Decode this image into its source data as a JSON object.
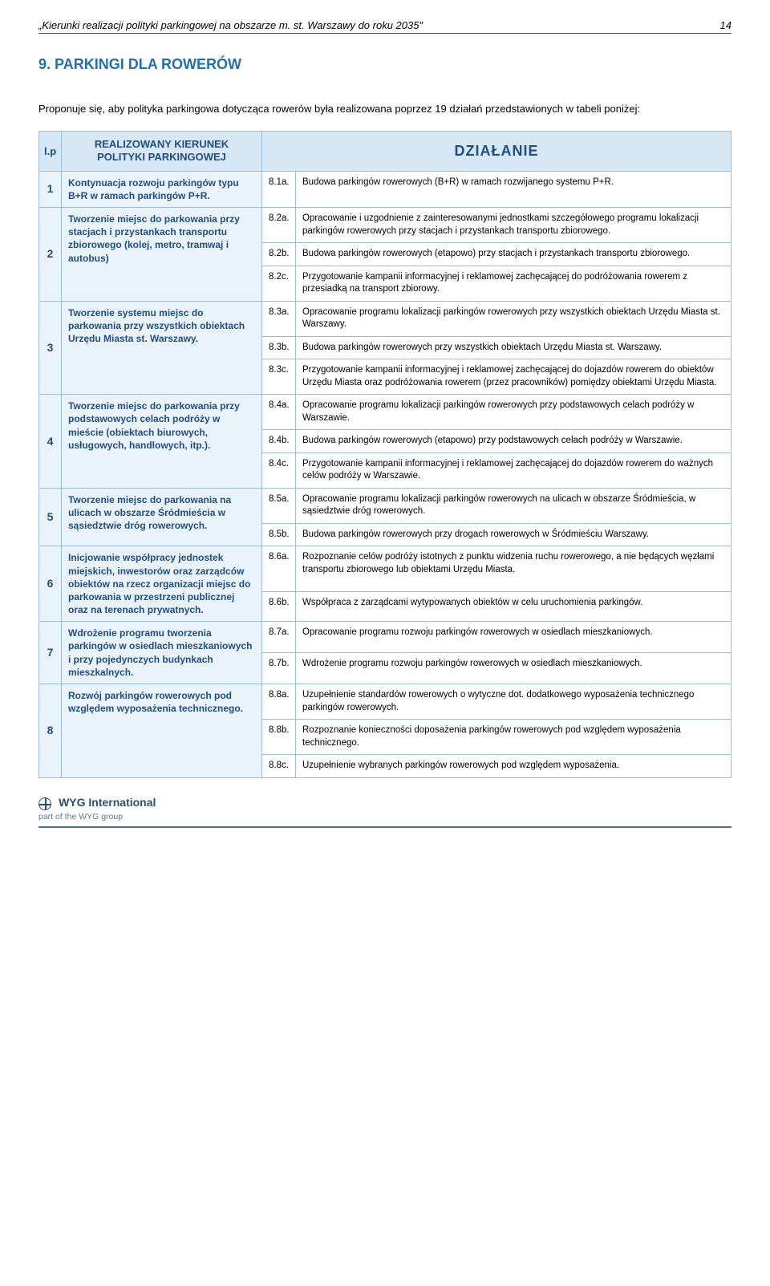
{
  "header": {
    "title_italic": "„Kierunki realizacji polityki parkingowej na obszarze m. st. Warszawy do roku 2035\"",
    "page_number": "14"
  },
  "section": {
    "number": "9.",
    "title": "PARKINGI DLA ROWERÓW"
  },
  "intro": "Proponuje się, aby polityka parkingowa dotycząca rowerów była realizowana poprzez 19 działań przedstawionych w tabeli poniżej:",
  "table": {
    "headers": {
      "lp": "l.p",
      "kierunek_line1": "REALIZOWANY KIERUNEK",
      "kierunek_line2": "POLITYKI PARKINGOWEJ",
      "dzialanie": "DZIAŁANIE"
    },
    "rows": [
      {
        "lp": "1",
        "kierunek": "Kontynuacja rozwoju parkingów typu B+R w ramach parkingów P+R.",
        "actions": [
          {
            "num": "8.1a.",
            "text": "Budowa parkingów rowerowych (B+R) w ramach rozwijanego systemu P+R."
          }
        ]
      },
      {
        "lp": "2",
        "kierunek": "Tworzenie miejsc do parkowania przy stacjach i przystankach transportu zbiorowego (kolej, metro, tramwaj i autobus)",
        "actions": [
          {
            "num": "8.2a.",
            "text": "Opracowanie i uzgodnienie z zainteresowanymi jednostkami szczegółowego programu lokalizacji parkingów rowerowych przy stacjach i przystankach transportu zbiorowego."
          },
          {
            "num": "8.2b.",
            "text": "Budowa parkingów rowerowych (etapowo) przy stacjach i przystankach transportu zbiorowego."
          },
          {
            "num": "8.2c.",
            "text": "Przygotowanie kampanii informacyjnej i reklamowej zachęcającej do podróżowania rowerem z przesiadką na transport zbiorowy."
          }
        ]
      },
      {
        "lp": "3",
        "kierunek": "Tworzenie systemu miejsc do parkowania przy wszystkich obiektach Urzędu Miasta st. Warszawy.",
        "actions": [
          {
            "num": "8.3a.",
            "text": "Opracowanie programu lokalizacji parkingów rowerowych przy wszystkich obiektach Urzędu Miasta st. Warszawy."
          },
          {
            "num": "8.3b.",
            "text": "Budowa parkingów rowerowych przy wszystkich obiektach Urzędu Miasta st. Warszawy."
          },
          {
            "num": "8.3c.",
            "text": "Przygotowanie kampanii informacyjnej i reklamowej zachęcającej do dojazdów rowerem do obiektów Urzędu Miasta oraz podróżowania rowerem (przez pracowników) pomiędzy obiektami Urzędu Miasta."
          }
        ]
      },
      {
        "lp": "4",
        "kierunek": "Tworzenie miejsc do parkowania przy podstawowych celach podróży w mieście (obiektach biurowych, usługowych, handlowych, itp.).",
        "actions": [
          {
            "num": "8.4a.",
            "text": "Opracowanie programu lokalizacji parkingów rowerowych przy podstawowych celach podróży w Warszawie."
          },
          {
            "num": "8.4b.",
            "text": "Budowa parkingów rowerowych (etapowo) przy podstawowych celach podróży w Warszawie."
          },
          {
            "num": "8.4c.",
            "text": "Przygotowanie kampanii informacyjnej i reklamowej zachęcającej do dojazdów rowerem do ważnych celów podróży w Warszawie."
          }
        ]
      },
      {
        "lp": "5",
        "kierunek": "Tworzenie miejsc do parkowania na ulicach w obszarze Śródmieścia w sąsiedztwie dróg rowerowych.",
        "actions": [
          {
            "num": "8.5a.",
            "text": "Opracowanie programu lokalizacji parkingów rowerowych na ulicach w obszarze Śródmieścia, w sąsiedztwie dróg rowerowych."
          },
          {
            "num": "8.5b.",
            "text": "Budowa parkingów rowerowych przy drogach rowerowych w Śródmieściu Warszawy."
          }
        ]
      },
      {
        "lp": "6",
        "kierunek": "Inicjowanie współpracy jednostek miejskich, inwestorów oraz zarządców obiektów na rzecz organizacji miejsc do parkowania w przestrzeni publicznej oraz na terenach prywatnych.",
        "actions": [
          {
            "num": "8.6a.",
            "text": "Rozpoznanie celów podróży istotnych z punktu widzenia ruchu rowerowego, a nie będących węzłami transportu zbiorowego lub obiektami Urzędu Miasta."
          },
          {
            "num": "8.6b.",
            "text": "Współpraca z zarządcami wytypowanych obiektów w celu uruchomienia parkingów."
          }
        ]
      },
      {
        "lp": "7",
        "kierunek": "Wdrożenie programu tworzenia parkingów w osiedlach mieszkaniowych i przy pojedynczych budynkach mieszkalnych.",
        "actions": [
          {
            "num": "8.7a.",
            "text": "Opracowanie programu rozwoju parkingów rowerowych w osiedlach mieszkaniowych."
          },
          {
            "num": "8.7b.",
            "text": "Wdrożenie programu rozwoju parkingów rowerowych w osiedlach mieszkaniowych."
          }
        ]
      },
      {
        "lp": "8",
        "kierunek": "Rozwój parkingów rowerowych pod względem wyposażenia technicznego.",
        "actions": [
          {
            "num": "8.8a.",
            "text": "Uzupełnienie standardów rowerowych o wytyczne dot. dodatkowego wyposażenia technicznego parkingów rowerowych."
          },
          {
            "num": "8.8b.",
            "text": "Rozpoznanie konieczności doposażenia parkingów rowerowych pod względem wyposażenia technicznego."
          },
          {
            "num": "8.8c.",
            "text": "Uzupełnienie wybranych parkingów rowerowych pod względem wyposażenia."
          }
        ]
      }
    ]
  },
  "footer": {
    "brand": "WYG International",
    "tagline": "part of the WYG group"
  },
  "style": {
    "header_bg": "#d6e7f5",
    "header_fg": "#1f4f80",
    "cell_border": "#9bbdd9",
    "lp_bg": "#eaf2fa",
    "section_title_color": "#1f6fb2"
  }
}
